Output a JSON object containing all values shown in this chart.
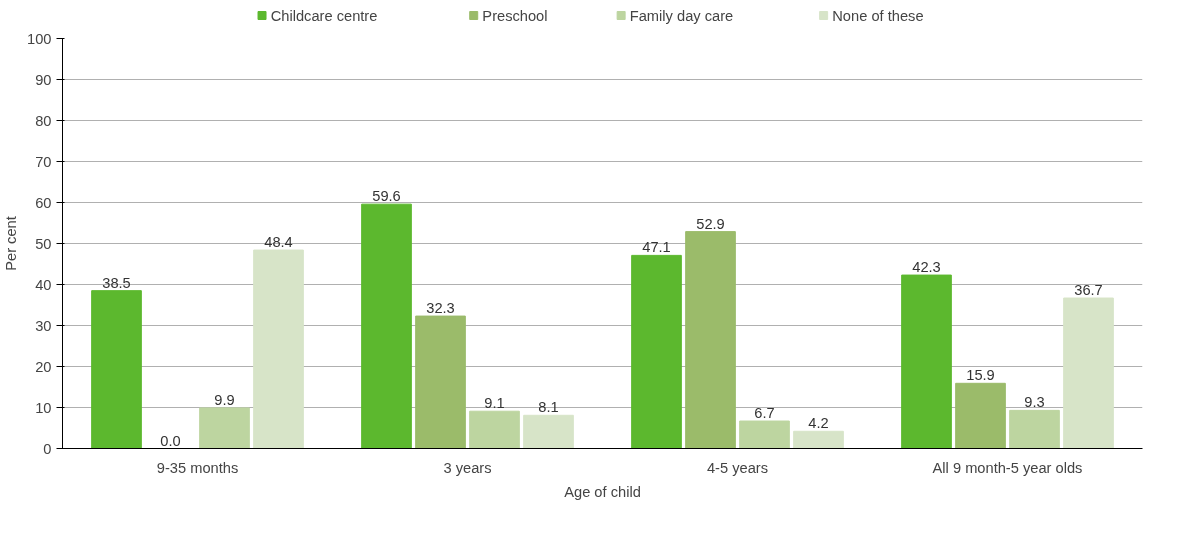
{
  "chart_data": {
    "type": "bar",
    "xlabel": "Age of child",
    "ylabel": "Per cent",
    "categories": [
      "9-35 months",
      "3 years",
      "4-5 years",
      "All 9 month-5 year olds"
    ],
    "series": [
      {
        "name": "Childcare centre",
        "color": "#5cb82e",
        "values": [
          38.5,
          59.6,
          47.1,
          42.3
        ],
        "value_labels": [
          "38.5",
          "59.6",
          "47.1",
          "42.3"
        ]
      },
      {
        "name": "Preschool",
        "color": "#9bbb6a",
        "values": [
          0.0,
          32.3,
          52.9,
          15.9
        ],
        "value_labels": [
          "0.0",
          "32.3",
          "52.9",
          "15.9"
        ]
      },
      {
        "name": "Family day care",
        "color": "#bdd5a0",
        "values": [
          9.9,
          9.1,
          6.7,
          9.3
        ],
        "value_labels": [
          "9.9",
          "9.1",
          "6.7",
          "9.3"
        ]
      },
      {
        "name": "None of these",
        "color": "#d7e4c8",
        "values": [
          48.4,
          8.1,
          4.2,
          36.7
        ],
        "value_labels": [
          "48.4",
          "8.1",
          "4.2",
          "36.7"
        ]
      }
    ],
    "ylim": [
      0,
      100
    ],
    "yticks": [
      0,
      10,
      20,
      30,
      40,
      50,
      60,
      70,
      80,
      90,
      100
    ],
    "grid": "y",
    "legend": "top"
  }
}
